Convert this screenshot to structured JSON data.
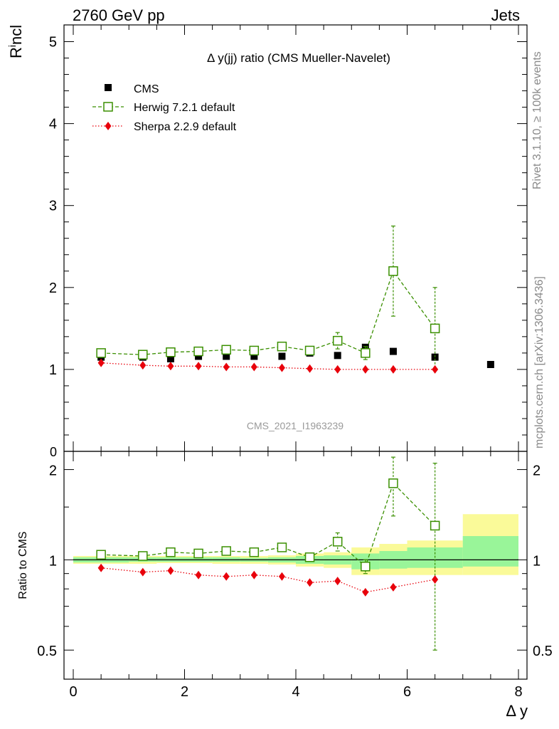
{
  "header": {
    "left": "2760 GeV pp",
    "right": "Jets"
  },
  "side_labels": {
    "rivet": "Rivet 3.1.10, ≥ 100k events",
    "url": "mcplots.cern.ch [arXiv:1306.3436]"
  },
  "colors": {
    "cms": "#000000",
    "herwig": "#3a8f00",
    "sherpa": "#e8000b",
    "band_green": "#99f599",
    "band_yellow": "#fafa99"
  },
  "chart_data": [
    {
      "type": "scatter",
      "title": "Δ y(jj) ratio (CMS Mueller-Navelet)",
      "ylabel": "R^i_ncl",
      "xlim": [
        0,
        8
      ],
      "ylim": [
        0,
        5.1
      ],
      "yticks": [
        "1",
        "2",
        "3",
        "4",
        "5"
      ],
      "y0label": "0",
      "watermark": "CMS_2021_I1963239",
      "legend_position": "top-left",
      "series": [
        {
          "name": "CMS",
          "marker": "filled-square",
          "points": [
            [
              0.5,
              1.15
            ],
            [
              1.25,
              1.15
            ],
            [
              1.75,
              1.13
            ],
            [
              2.25,
              1.16
            ],
            [
              2.75,
              1.16
            ],
            [
              3.25,
              1.16
            ],
            [
              3.75,
              1.16
            ],
            [
              4.25,
              1.2
            ],
            [
              4.75,
              1.17
            ],
            [
              5.25,
              1.27
            ],
            [
              5.75,
              1.22
            ],
            [
              6.5,
              1.15
            ],
            [
              7.5,
              1.06
            ]
          ]
        },
        {
          "name": "Herwig 7.2.1 default",
          "marker": "open-square",
          "line": "dashed",
          "points": [
            [
              0.5,
              1.2,
              0.02
            ],
            [
              1.25,
              1.18,
              0.02
            ],
            [
              1.75,
              1.21,
              0.02
            ],
            [
              2.25,
              1.22,
              0.02
            ],
            [
              2.75,
              1.24,
              0.02
            ],
            [
              3.25,
              1.23,
              0.02
            ],
            [
              3.75,
              1.28,
              0.03
            ],
            [
              4.25,
              1.23,
              0.04
            ],
            [
              4.75,
              1.35,
              0.1
            ],
            [
              5.25,
              1.2,
              0.08
            ],
            [
              5.75,
              2.2,
              0.55
            ],
            [
              6.5,
              1.5,
              0.5
            ]
          ]
        },
        {
          "name": "Sherpa 2.2.9 default",
          "marker": "diamond",
          "line": "dotted",
          "points": [
            [
              0.5,
              1.08
            ],
            [
              1.25,
              1.05
            ],
            [
              1.75,
              1.04
            ],
            [
              2.25,
              1.04
            ],
            [
              2.75,
              1.03
            ],
            [
              3.25,
              1.03
            ],
            [
              3.75,
              1.02
            ],
            [
              4.25,
              1.01
            ],
            [
              4.75,
              1.0
            ],
            [
              5.25,
              1.0
            ],
            [
              5.75,
              1.0
            ],
            [
              6.5,
              1.0
            ]
          ]
        }
      ]
    },
    {
      "type": "scatter",
      "ylabel": "Ratio to CMS",
      "xlabel": "Δ y",
      "log_y": true,
      "xlim": [
        0,
        8
      ],
      "ylim": [
        0.4,
        2.3
      ],
      "yticks": [
        "0.5",
        "1",
        "2"
      ],
      "xticks": [
        "0",
        "2",
        "4",
        "6",
        "8"
      ],
      "bands": [
        {
          "x": [
            0,
            0.5
          ],
          "inner": [
            0.98,
            1.02
          ],
          "outer": [
            0.97,
            1.03
          ]
        },
        {
          "x": [
            0.5,
            1.0
          ],
          "inner": [
            0.98,
            1.02
          ],
          "outer": [
            0.97,
            1.03
          ]
        },
        {
          "x": [
            1.0,
            1.5
          ],
          "inner": [
            0.985,
            1.02
          ],
          "outer": [
            0.97,
            1.03
          ]
        },
        {
          "x": [
            1.5,
            2.0
          ],
          "inner": [
            0.985,
            1.02
          ],
          "outer": [
            0.975,
            1.03
          ]
        },
        {
          "x": [
            2.0,
            2.5
          ],
          "inner": [
            0.985,
            1.02
          ],
          "outer": [
            0.975,
            1.03
          ]
        },
        {
          "x": [
            2.5,
            3.0
          ],
          "inner": [
            0.985,
            1.02
          ],
          "outer": [
            0.97,
            1.03
          ]
        },
        {
          "x": [
            3.0,
            3.5
          ],
          "inner": [
            0.985,
            1.015
          ],
          "outer": [
            0.97,
            1.03
          ]
        },
        {
          "x": [
            3.5,
            4.0
          ],
          "inner": [
            0.98,
            1.02
          ],
          "outer": [
            0.965,
            1.035
          ]
        },
        {
          "x": [
            4.0,
            4.5
          ],
          "inner": [
            0.97,
            1.03
          ],
          "outer": [
            0.95,
            1.05
          ]
        },
        {
          "x": [
            4.5,
            5.0
          ],
          "inner": [
            0.965,
            1.035
          ],
          "outer": [
            0.94,
            1.06
          ]
        },
        {
          "x": [
            5.0,
            5.5
          ],
          "inner": [
            0.93,
            1.05
          ],
          "outer": [
            0.89,
            1.1
          ]
        },
        {
          "x": [
            5.5,
            6.0
          ],
          "inner": [
            0.935,
            1.07
          ],
          "outer": [
            0.89,
            1.13
          ]
        },
        {
          "x": [
            6.0,
            7.0
          ],
          "inner": [
            0.94,
            1.1
          ],
          "outer": [
            0.89,
            1.16
          ]
        },
        {
          "x": [
            7.0,
            8.0
          ],
          "inner": [
            0.95,
            1.2
          ],
          "outer": [
            0.89,
            1.42
          ]
        }
      ],
      "series": [
        {
          "name": "Herwig 7.2.1 default",
          "marker": "open-square",
          "line": "dashed",
          "points": [
            [
              0.5,
              1.04,
              0.01
            ],
            [
              1.25,
              1.03,
              0.01
            ],
            [
              1.75,
              1.06,
              0.01
            ],
            [
              2.25,
              1.05,
              0.01
            ],
            [
              2.75,
              1.07,
              0.01
            ],
            [
              3.25,
              1.06,
              0.01
            ],
            [
              3.75,
              1.1,
              0.02
            ],
            [
              4.25,
              1.02,
              0.03
            ],
            [
              4.75,
              1.15,
              0.08
            ],
            [
              5.25,
              0.95,
              0.05
            ],
            [
              5.75,
              1.8,
              0.4
            ],
            [
              6.5,
              1.3,
              0.8
            ]
          ]
        },
        {
          "name": "Sherpa 2.2.9 default",
          "marker": "diamond",
          "line": "dotted",
          "points": [
            [
              0.5,
              0.94
            ],
            [
              1.25,
              0.91
            ],
            [
              1.75,
              0.92
            ],
            [
              2.25,
              0.89
            ],
            [
              2.75,
              0.88
            ],
            [
              3.25,
              0.89
            ],
            [
              3.75,
              0.88
            ],
            [
              4.25,
              0.84
            ],
            [
              4.75,
              0.85
            ],
            [
              5.25,
              0.78
            ],
            [
              5.75,
              0.81
            ],
            [
              6.5,
              0.86
            ]
          ]
        }
      ]
    }
  ]
}
